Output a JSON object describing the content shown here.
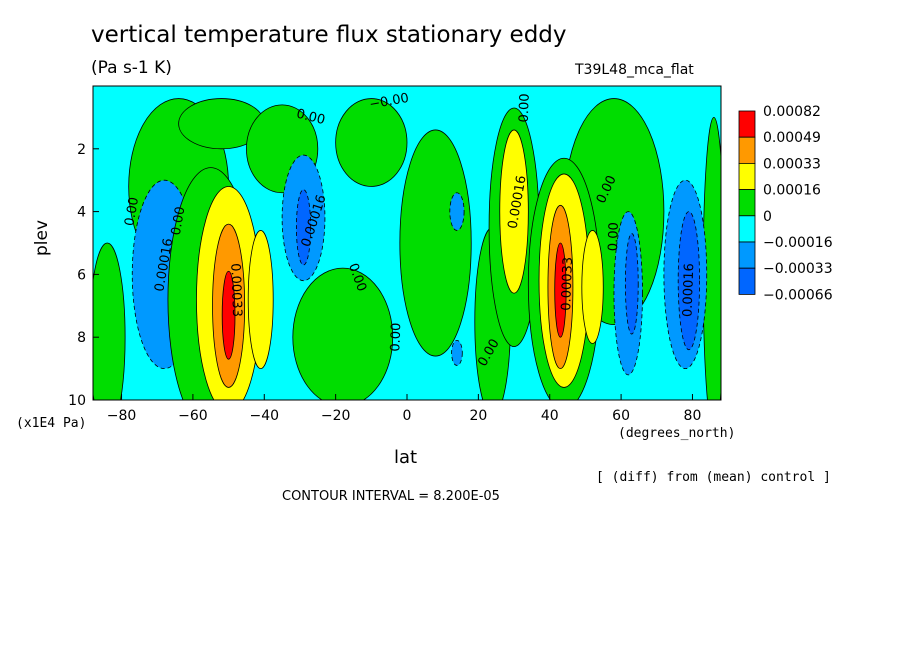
{
  "chart_data": {
    "type": "heatmap",
    "title": "vertical temperature flux stationary eddy",
    "subtitle": "(Pa s-1 K)",
    "run_label": "T39L48_mca_flat",
    "xlabel": "lat",
    "x_unit": "(degrees_north)",
    "ylabel": "plev",
    "y_unit": "(x1E4 Pa)",
    "xlim": [
      -88,
      88
    ],
    "ylim": [
      0,
      10
    ],
    "y_inverted": true,
    "x_ticks": [
      -80,
      -60,
      -40,
      -20,
      0,
      20,
      40,
      60,
      80
    ],
    "x_tick_labels": [
      "−80",
      "−60",
      "−40",
      "−20",
      "0",
      "20",
      "40",
      "60",
      "80"
    ],
    "y_ticks": [
      2,
      4,
      6,
      8,
      10
    ],
    "y_tick_labels": [
      "2",
      "4",
      "6",
      "8",
      "10"
    ],
    "background_color": "#00ffff",
    "legend": {
      "placement": "right",
      "levels": [
        {
          "label": "0.00082",
          "color": "#ff0000"
        },
        {
          "label": "0.00049",
          "color": "#ff9900"
        },
        {
          "label": "0.00033",
          "color": "#ffff00"
        },
        {
          "label": "0.00016",
          "color": "#00dd00"
        },
        {
          "label": "0",
          "color": "#00ffff"
        },
        {
          "label": "−0.00016",
          "color": "#0099ff"
        },
        {
          "label": "−0.00033",
          "color": "#0066ff"
        },
        {
          "label": "−0.00066",
          "color": "#000000"
        }
      ],
      "swatch_colors": [
        "#ff0000",
        "#ff9900",
        "#ffff00",
        "#00dd00",
        "#00ffff",
        "#0099ff",
        "#0066ff"
      ]
    },
    "features": [
      {
        "lat": -68,
        "plev": 6.3,
        "value": -0.00033,
        "color": "#0066ff",
        "rx": 6,
        "ry": 1.9
      },
      {
        "lat": -68,
        "plev": 6.0,
        "value": -0.00016,
        "color": "#0099ff",
        "rx": 9,
        "ry": 3.0
      },
      {
        "lat": -55,
        "plev": 6.8,
        "value": 0.00016,
        "color": "#00dd00",
        "rx": 12,
        "ry": 4.2
      },
      {
        "lat": -50,
        "plev": 6.8,
        "value": 0.00033,
        "color": "#ffff00",
        "rx": 9,
        "ry": 3.6
      },
      {
        "lat": -50,
        "plev": 7.0,
        "value": 0.00049,
        "color": "#ff9900",
        "rx": 4.5,
        "ry": 2.6
      },
      {
        "lat": -50,
        "plev": 7.3,
        "value": 0.00082,
        "color": "#ff0000",
        "rx": 1.8,
        "ry": 1.4
      },
      {
        "lat": -41,
        "plev": 6.8,
        "value": 0.00033,
        "color": "#ffff00",
        "rx": 3.5,
        "ry": 2.2
      },
      {
        "lat": -29,
        "plev": 4.2,
        "value": -0.00016,
        "color": "#0099ff",
        "rx": 6,
        "ry": 2.0
      },
      {
        "lat": -29,
        "plev": 4.5,
        "value": -0.00033,
        "color": "#0066ff",
        "rx": 2,
        "ry": 1.2
      },
      {
        "lat": 14,
        "plev": 4.0,
        "value": -0.00016,
        "color": "#0099ff",
        "rx": 2,
        "ry": 0.6
      },
      {
        "lat": 14,
        "plev": 8.5,
        "value": -0.00016,
        "color": "#0099ff",
        "rx": 1.5,
        "ry": 0.4
      },
      {
        "lat": 30,
        "plev": 4.5,
        "value": 0.00016,
        "color": "#00dd00",
        "rx": 7,
        "ry": 3.8
      },
      {
        "lat": 30,
        "plev": 4.0,
        "value": 0.00033,
        "color": "#ffff00",
        "rx": 4,
        "ry": 2.6
      },
      {
        "lat": 44,
        "plev": 6.3,
        "value": 0.00016,
        "color": "#00dd00",
        "rx": 10,
        "ry": 4.0
      },
      {
        "lat": 44,
        "plev": 6.2,
        "value": 0.00033,
        "color": "#ffff00",
        "rx": 7,
        "ry": 3.4
      },
      {
        "lat": 43,
        "plev": 6.4,
        "value": 0.00049,
        "color": "#ff9900",
        "rx": 3.5,
        "ry": 2.6
      },
      {
        "lat": 43,
        "plev": 6.5,
        "value": 0.00082,
        "color": "#ff0000",
        "rx": 1.6,
        "ry": 1.5
      },
      {
        "lat": 52,
        "plev": 6.4,
        "value": 0.00033,
        "color": "#ffff00",
        "rx": 3,
        "ry": 1.8
      },
      {
        "lat": 62,
        "plev": 6.6,
        "value": -0.00016,
        "color": "#0099ff",
        "rx": 4,
        "ry": 2.6
      },
      {
        "lat": 63,
        "plev": 6.3,
        "value": -0.00033,
        "color": "#0066ff",
        "rx": 1.8,
        "ry": 1.6
      },
      {
        "lat": 78,
        "plev": 6.0,
        "value": -0.00016,
        "color": "#0099ff",
        "rx": 6,
        "ry": 3.0
      },
      {
        "lat": 79,
        "plev": 6.2,
        "value": -0.00033,
        "color": "#0066ff",
        "rx": 3,
        "ry": 2.2
      }
    ],
    "green_regions": [
      {
        "lat": -64,
        "plev": 3.2,
        "rx": 14,
        "ry": 2.8
      },
      {
        "lat": -52,
        "plev": 1.2,
        "rx": 12,
        "ry": 0.8
      },
      {
        "lat": -35,
        "plev": 2.0,
        "rx": 10,
        "ry": 1.4
      },
      {
        "lat": -10,
        "plev": 1.8,
        "rx": 10,
        "ry": 1.4
      },
      {
        "lat": 8,
        "plev": 5.0,
        "rx": 10,
        "ry": 3.6
      },
      {
        "lat": 24,
        "plev": 7.5,
        "rx": 5,
        "ry": 3.0
      },
      {
        "lat": 58,
        "plev": 4.0,
        "rx": 14,
        "ry": 3.6
      },
      {
        "lat": -84,
        "plev": 8.0,
        "rx": 5,
        "ry": 3.0
      },
      {
        "lat": 86,
        "plev": 6.0,
        "rx": 3,
        "ry": 5.0
      },
      {
        "lat": -18,
        "plev": 8.0,
        "rx": 14,
        "ry": 2.2
      }
    ],
    "contour_labels": [
      {
        "text": "0.00",
        "lat": -77,
        "plev": 4.0,
        "angle": -80
      },
      {
        "text": "0.00",
        "lat": -64,
        "plev": 4.3,
        "angle": -80
      },
      {
        "text": "0.00016",
        "lat": -68,
        "plev": 5.7,
        "angle": -80
      },
      {
        "text": "0.00033",
        "lat": -48,
        "plev": 6.5,
        "angle": 88
      },
      {
        "text": "0.00",
        "lat": -27,
        "plev": 1.0,
        "angle": 14
      },
      {
        "text": "−0.00",
        "lat": -5,
        "plev": 0.5,
        "angle": -10
      },
      {
        "text": "0.00016",
        "lat": -26,
        "plev": 4.3,
        "angle": -72
      },
      {
        "text": "0.00",
        "lat": -14,
        "plev": 6.1,
        "angle": 70
      },
      {
        "text": "0.00",
        "lat": -3,
        "plev": 8.0,
        "angle": -88
      },
      {
        "text": "0.00",
        "lat": 33,
        "plev": 0.7,
        "angle": -88
      },
      {
        "text": "0.00",
        "lat": 23,
        "plev": 8.5,
        "angle": -60
      },
      {
        "text": "0.00016",
        "lat": 31,
        "plev": 3.7,
        "angle": -80
      },
      {
        "text": "0.00",
        "lat": 56,
        "plev": 3.3,
        "angle": -65
      },
      {
        "text": "0.00",
        "lat": 58,
        "plev": 4.8,
        "angle": -88
      },
      {
        "text": "0.00033",
        "lat": 45,
        "plev": 6.3,
        "angle": -88
      },
      {
        "text": "0.00016",
        "lat": 79,
        "plev": 6.5,
        "angle": -88
      }
    ]
  },
  "footer": {
    "diff_note": "[ (diff) from (mean) control ]",
    "contour_interval": "CONTOUR INTERVAL = 8.200E-05"
  }
}
